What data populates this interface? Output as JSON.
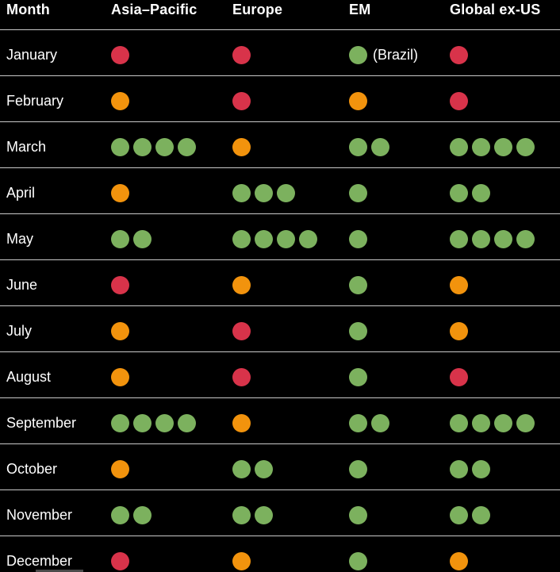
{
  "chart_data": {
    "type": "table",
    "title": "",
    "description": "Dark-themed dot-matrix table: monthly color-coded status dots (count = number of dots) for four regional equity groups",
    "columns": [
      "Month",
      "Asia–Pacific",
      "Europe",
      "EM",
      "Global ex-US"
    ],
    "color_legend": {
      "red": "#d8334a",
      "orange": "#f2930d",
      "green": "#7cb15e"
    },
    "layout": {
      "background": "#000000",
      "text_color": "#ffffff",
      "separator_color": "#c9c9c9"
    },
    "rows": [
      {
        "month": "January",
        "cells": [
          {
            "color": "red",
            "count": 1
          },
          {
            "color": "red",
            "count": 1
          },
          {
            "color": "green",
            "count": 1,
            "note": "(Brazil)"
          },
          {
            "color": "red",
            "count": 1
          }
        ]
      },
      {
        "month": "February",
        "cells": [
          {
            "color": "orange",
            "count": 1
          },
          {
            "color": "red",
            "count": 1
          },
          {
            "color": "orange",
            "count": 1
          },
          {
            "color": "red",
            "count": 1
          }
        ]
      },
      {
        "month": "March",
        "cells": [
          {
            "color": "green",
            "count": 4
          },
          {
            "color": "orange",
            "count": 1
          },
          {
            "color": "green",
            "count": 2
          },
          {
            "color": "green",
            "count": 4
          }
        ]
      },
      {
        "month": "April",
        "cells": [
          {
            "color": "orange",
            "count": 1
          },
          {
            "color": "green",
            "count": 3
          },
          {
            "color": "green",
            "count": 1
          },
          {
            "color": "green",
            "count": 2
          }
        ]
      },
      {
        "month": "May",
        "cells": [
          {
            "color": "green",
            "count": 2
          },
          {
            "color": "green",
            "count": 4
          },
          {
            "color": "green",
            "count": 1
          },
          {
            "color": "green",
            "count": 4
          }
        ]
      },
      {
        "month": "June",
        "cells": [
          {
            "color": "red",
            "count": 1
          },
          {
            "color": "orange",
            "count": 1
          },
          {
            "color": "green",
            "count": 1
          },
          {
            "color": "orange",
            "count": 1
          }
        ]
      },
      {
        "month": "July",
        "cells": [
          {
            "color": "orange",
            "count": 1
          },
          {
            "color": "red",
            "count": 1
          },
          {
            "color": "green",
            "count": 1
          },
          {
            "color": "orange",
            "count": 1
          }
        ]
      },
      {
        "month": "August",
        "cells": [
          {
            "color": "orange",
            "count": 1
          },
          {
            "color": "red",
            "count": 1
          },
          {
            "color": "green",
            "count": 1
          },
          {
            "color": "red",
            "count": 1
          }
        ]
      },
      {
        "month": "September",
        "cells": [
          {
            "color": "green",
            "count": 4
          },
          {
            "color": "orange",
            "count": 1
          },
          {
            "color": "green",
            "count": 2
          },
          {
            "color": "green",
            "count": 4
          }
        ]
      },
      {
        "month": "October",
        "cells": [
          {
            "color": "orange",
            "count": 1
          },
          {
            "color": "green",
            "count": 2
          },
          {
            "color": "green",
            "count": 1
          },
          {
            "color": "green",
            "count": 2
          }
        ]
      },
      {
        "month": "November",
        "cells": [
          {
            "color": "green",
            "count": 2
          },
          {
            "color": "green",
            "count": 2
          },
          {
            "color": "green",
            "count": 1
          },
          {
            "color": "green",
            "count": 2
          }
        ]
      },
      {
        "month": "December",
        "cells": [
          {
            "color": "red",
            "count": 1
          },
          {
            "color": "orange",
            "count": 1
          },
          {
            "color": "green",
            "count": 1
          },
          {
            "color": "orange",
            "count": 1
          }
        ]
      }
    ]
  }
}
